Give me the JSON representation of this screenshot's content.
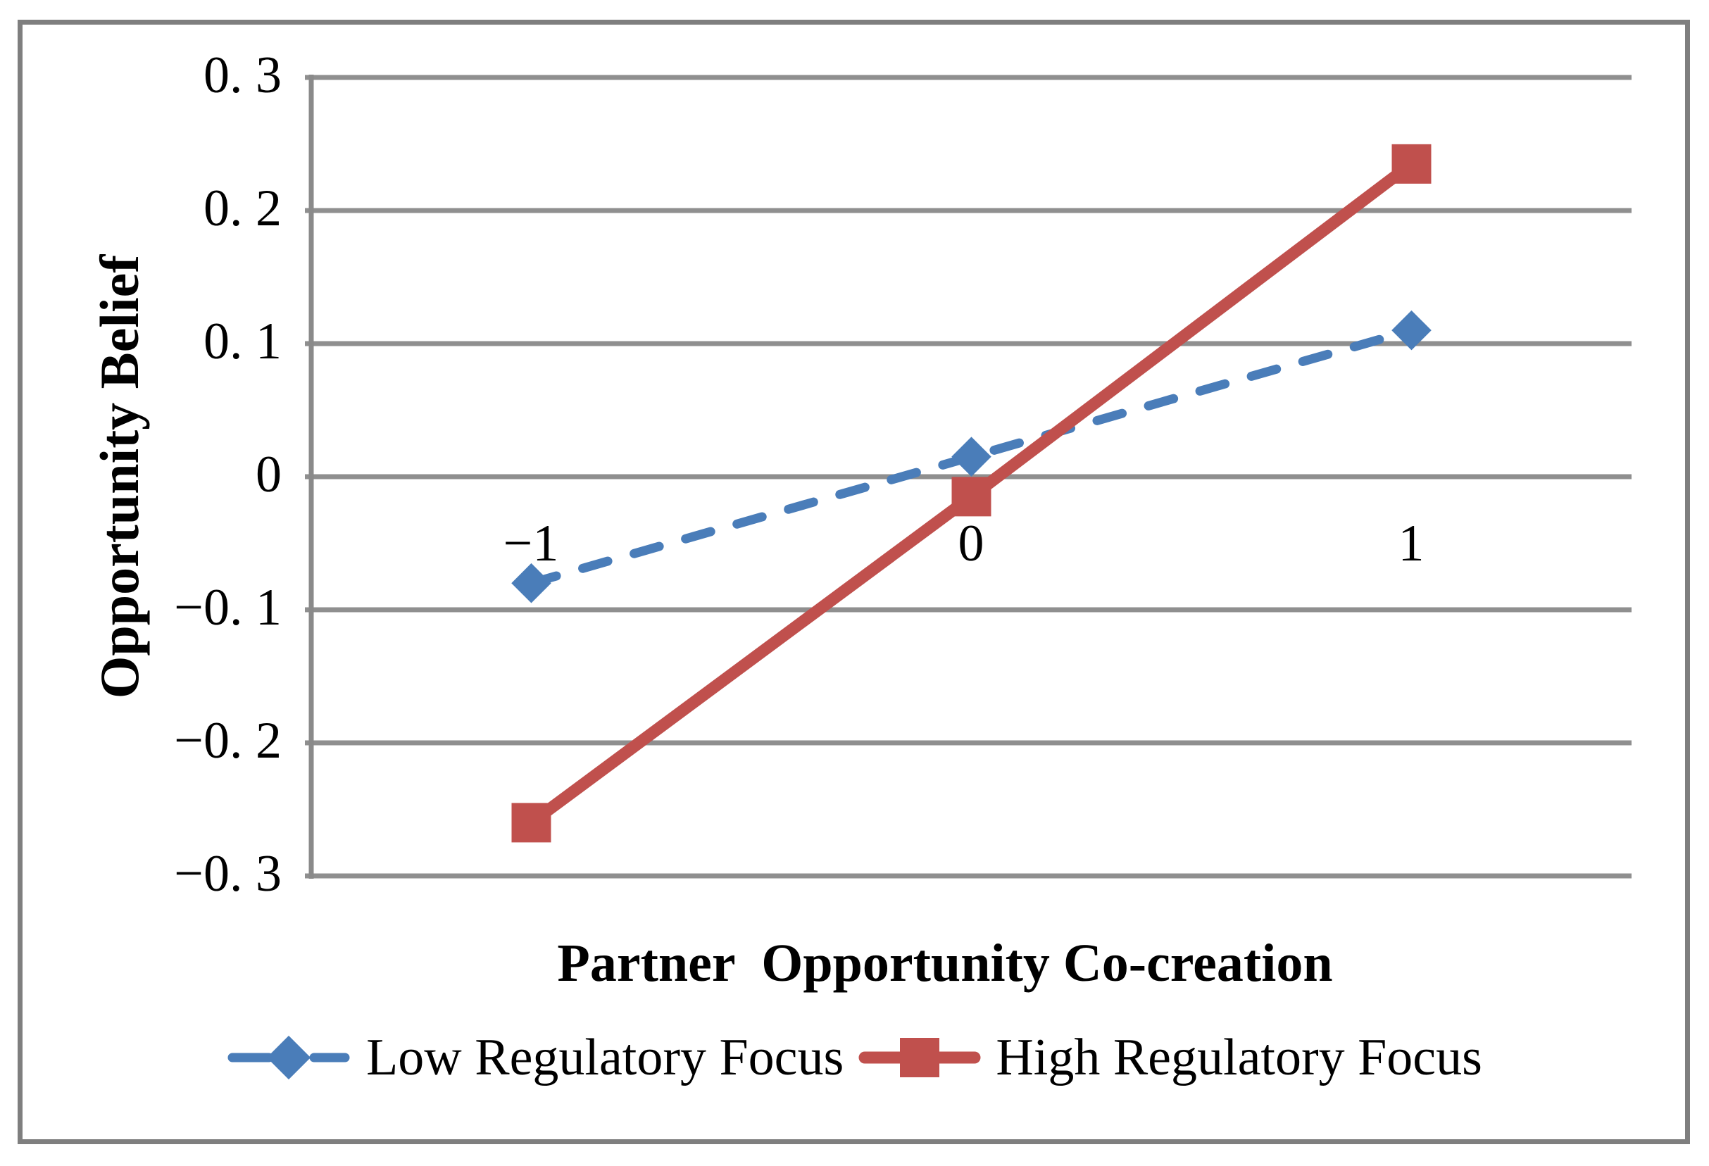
{
  "figure": {
    "border_color": "#7f7f7f",
    "background": "#ffffff"
  },
  "chart_data": {
    "type": "line",
    "title": "",
    "xlabel": "Partner  Opportunity Co-creation",
    "ylabel": "Opportunity Belief",
    "categories": [
      -1,
      0,
      1
    ],
    "x_tick_labels": [
      "−1",
      "0",
      "1"
    ],
    "y_tick_labels": [
      "0. 3",
      "0. 2",
      "0. 1",
      "0",
      "−0. 1",
      "−0. 2",
      "−0. 3"
    ],
    "y_tick_values": [
      0.3,
      0.2,
      0.1,
      0,
      -0.1,
      -0.2,
      -0.3
    ],
    "ylim": [
      -0.3,
      0.3
    ],
    "grid": "horizontal-only",
    "gridline_color": "#8f8f8f",
    "axis_color": "#8a8a8a",
    "legend_position": "bottom",
    "series": [
      {
        "name": "Low Regulatory Focus",
        "values": [
          -0.08,
          0.015,
          0.11
        ],
        "color": "#4a7db9",
        "style": "dashed",
        "marker": "diamond"
      },
      {
        "name": "High Regulatory Focus",
        "values": [
          -0.26,
          -0.015,
          0.235
        ],
        "color": "#c0504d",
        "style": "solid",
        "marker": "square"
      }
    ]
  }
}
